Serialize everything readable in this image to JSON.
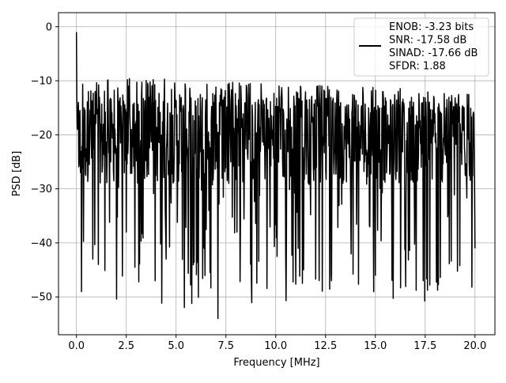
{
  "chart_data": {
    "type": "line",
    "xlabel": "Frequency [MHz]",
    "ylabel": "PSD [dB]",
    "xlim": [
      -0.9,
      21.0
    ],
    "ylim": [
      -57,
      2.6
    ],
    "x_ticks": [
      0.0,
      2.5,
      5.0,
      7.5,
      10.0,
      12.5,
      15.0,
      17.5,
      20.0
    ],
    "x_tick_labels": [
      "0.0",
      "2.5",
      "5.0",
      "7.5",
      "10.0",
      "12.5",
      "15.0",
      "17.5",
      "20.0"
    ],
    "y_ticks": [
      0,
      -10,
      -20,
      -30,
      -40,
      -50
    ],
    "y_tick_labels": [
      "0",
      "−10",
      "−20",
      "−30",
      "−40",
      "−50"
    ],
    "grid": true,
    "legend_position": "top-right",
    "legend_lines": [
      "ENOB: -3.23 bits",
      "SNR: -17.58 dB",
      "SINAD: -17.66 dB",
      "SFDR: 1.88"
    ],
    "series": [
      {
        "color": "#000000",
        "x_range": [
          0,
          20
        ],
        "num_points": 1024,
        "values_sampled": {
          "x": [
            0.0,
            0.05,
            0.1,
            0.2,
            0.6,
            1.1,
            1.5,
            2.5,
            4.5,
            6.4,
            7.1,
            10.5,
            12.8,
            15.0,
            17.4,
            20.0
          ],
          "y": [
            -1,
            -19,
            -14,
            -27,
            -12,
            -44,
            -22,
            -38,
            -43,
            -41,
            -54,
            -42,
            -47,
            -46,
            -47,
            -41
          ]
        },
        "typical_envelope": {
          "upper": -9,
          "median": -21,
          "lower": -40
        }
      }
    ]
  }
}
